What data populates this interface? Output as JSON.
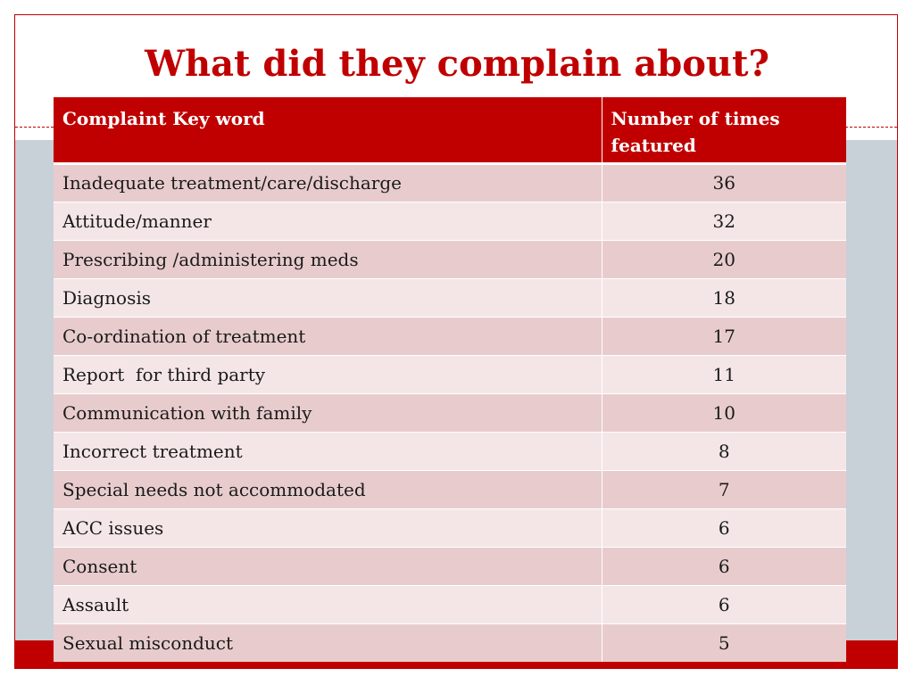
{
  "slide": {
    "title": "What did they complain about?"
  },
  "table": {
    "headers": [
      "Complaint Key word",
      "Number of times featured"
    ],
    "rows": [
      [
        "Inadequate treatment/care/discharge",
        "36"
      ],
      [
        "Attitude/manner",
        "32"
      ],
      [
        "Prescribing /administering meds",
        "20"
      ],
      [
        "Diagnosis",
        "18"
      ],
      [
        "Co-ordination of treatment",
        "17"
      ],
      [
        "Report  for third party",
        "11"
      ],
      [
        "Communication with family",
        "10"
      ],
      [
        "Incorrect treatment",
        "8"
      ],
      [
        "Special needs not accommodated",
        "7"
      ],
      [
        "ACC issues",
        "6"
      ],
      [
        "Consent",
        "6"
      ],
      [
        "Assault",
        "6"
      ],
      [
        "Sexual misconduct",
        "5"
      ]
    ]
  },
  "colors": {
    "accent_red": "#c00000",
    "row_dark": "#e8cccd",
    "row_light": "#f4e6e7",
    "band_grey": "#c8d0d8"
  }
}
